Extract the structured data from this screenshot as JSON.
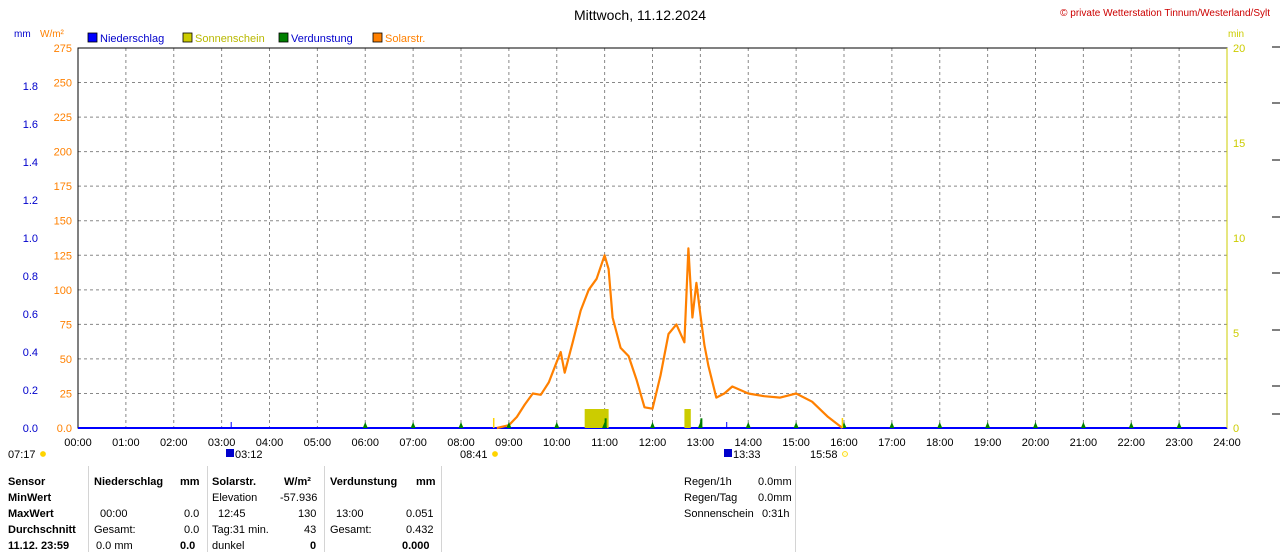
{
  "header": {
    "title": "Mittwoch, 11.12.2024",
    "copyright": "© private Wetterstation Tinnum/Westerland/Sylt",
    "unit_mm": "mm",
    "unit_wm2": "W/m²",
    "unit_min": "min"
  },
  "legend": [
    {
      "label": "Niederschlag",
      "color": "#0000ff",
      "text_color": "#0000cc"
    },
    {
      "label": "Sonnenschein",
      "color": "#cccc00",
      "text_color": "#b8b800"
    },
    {
      "label": "Verdunstung",
      "color": "#008000",
      "text_color": "#0000cc"
    },
    {
      "label": "Solarstr.",
      "color": "#ff8000",
      "text_color": "#ff8000"
    }
  ],
  "chart_data": {
    "type": "line",
    "x_unit": "time of day",
    "x_range": [
      "00:00",
      "24:00"
    ],
    "x_ticks": [
      "00:00",
      "01:00",
      "02:00",
      "03:00",
      "04:00",
      "05:00",
      "06:00",
      "07:00",
      "08:00",
      "09:00",
      "10:00",
      "11:00",
      "12:00",
      "13:00",
      "14:00",
      "15:00",
      "16:00",
      "17:00",
      "18:00",
      "19:00",
      "20:00",
      "21:00",
      "22:00",
      "23:00",
      "24:00"
    ],
    "axes": {
      "mm": {
        "ticks": [
          "0.0",
          "0.2",
          "0.4",
          "0.6",
          "0.8",
          "1.0",
          "1.2",
          "1.4",
          "1.6",
          "1.8"
        ],
        "range": [
          0,
          2.0
        ],
        "color": "#0000cc"
      },
      "wm2": {
        "ticks": [
          "0.0",
          "25",
          "50",
          "75",
          "100",
          "125",
          "150",
          "175",
          "200",
          "225",
          "250",
          "275"
        ],
        "range": [
          0,
          275
        ],
        "color": "#ff8000"
      },
      "min": {
        "ticks": [
          "0",
          "5",
          "10",
          "15",
          "20"
        ],
        "range": [
          0,
          20
        ],
        "color": "#cccc00"
      }
    },
    "grid": true,
    "series": [
      {
        "name": "Solarstr.",
        "axis": "wm2",
        "color": "#ff8000",
        "x": [
          "08:45",
          "09:00",
          "09:10",
          "09:20",
          "09:30",
          "09:40",
          "09:50",
          "10:00",
          "10:05",
          "10:10",
          "10:20",
          "10:30",
          "10:40",
          "10:50",
          "11:00",
          "11:05",
          "11:10",
          "11:20",
          "11:30",
          "11:40",
          "11:50",
          "12:00",
          "12:10",
          "12:20",
          "12:30",
          "12:40",
          "12:45",
          "12:50",
          "12:55",
          "13:00",
          "13:05",
          "13:10",
          "13:20",
          "13:30",
          "13:40",
          "14:00",
          "14:20",
          "14:40",
          "15:00",
          "15:20",
          "15:40",
          "15:58"
        ],
        "y": [
          0,
          2,
          8,
          17,
          25,
          24,
          33,
          48,
          55,
          40,
          62,
          85,
          100,
          108,
          125,
          115,
          80,
          58,
          52,
          35,
          15,
          14,
          38,
          68,
          75,
          62,
          130,
          80,
          105,
          82,
          60,
          45,
          22,
          25,
          30,
          25,
          23,
          22,
          25,
          19,
          8,
          0
        ]
      },
      {
        "name": "Sonnenschein",
        "axis": "min",
        "type": "bar",
        "color": "#cccc00",
        "bars": [
          {
            "start": "10:35",
            "end": "11:05",
            "value": 1.0
          },
          {
            "start": "12:40",
            "end": "12:48",
            "value": 1.0
          }
        ]
      },
      {
        "name": "Verdunstung",
        "axis": "mm",
        "type": "bar",
        "color": "#008000",
        "bars": [
          {
            "start": "11:00",
            "end": "11:02",
            "value": 0.051
          },
          {
            "start": "13:00",
            "end": "13:02",
            "value": 0.051
          }
        ]
      },
      {
        "name": "Niederschlag",
        "axis": "mm",
        "type": "bar",
        "color": "#0000ff",
        "bars": []
      }
    ],
    "events": [
      {
        "label": "07:17",
        "kind": "sun"
      },
      {
        "label": "03:12",
        "kind": "moon"
      },
      {
        "label": "08:41",
        "kind": "sunrise"
      },
      {
        "label": "13:33",
        "kind": "moon"
      },
      {
        "label": "15:58",
        "kind": "sunset"
      }
    ]
  },
  "table": {
    "col1": {
      "header": "Sensor",
      "rows": [
        "MinWert",
        "MaxWert",
        "Durchschnitt",
        "11.12. 23:59"
      ]
    },
    "niederschlag": {
      "header": "Niederschlag",
      "unit": "mm",
      "max_time": "00:00",
      "max_val": "0.0",
      "gesamt_label": "Gesamt:",
      "gesamt_val": "0.0",
      "sum_val": "0.0 mm",
      "sum_bold": "0.0"
    },
    "solar": {
      "header": "Solarstr.",
      "unit": "W/m²",
      "elev_label": "Elevation",
      "elev_val": "-57.936",
      "max_time": "12:45",
      "max_val": "130",
      "tag_label": "Tag:31 min.",
      "tag_val": "43",
      "dark_label": "dunkel",
      "dark_val": "0"
    },
    "verdunstung": {
      "header": "Verdunstung",
      "unit": "mm",
      "max_time": "13:00",
      "max_val": "0.051",
      "gesamt_label": "Gesamt:",
      "gesamt_val": "0.432",
      "sum_val": "0.000"
    },
    "extra": {
      "regen1h_label": "Regen/1h",
      "regen1h_val": "0.0mm",
      "regentag_label": "Regen/Tag",
      "regentag_val": "0.0mm",
      "sonne_label": "Sonnenschein",
      "sonne_val": "0:31h"
    }
  }
}
